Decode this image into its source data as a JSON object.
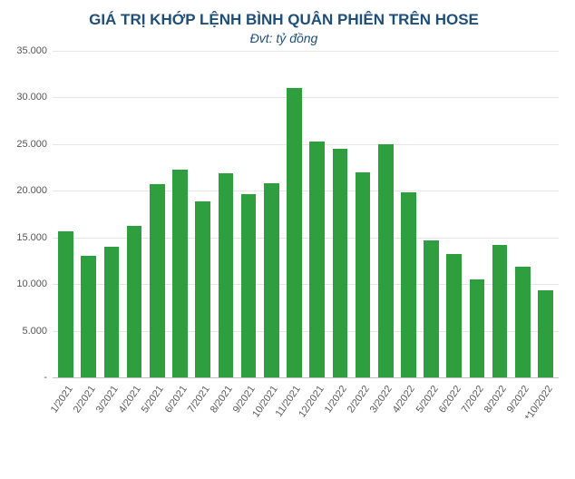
{
  "chart": {
    "type": "bar",
    "title": "GIÁ TRỊ KHỚP LỆNH BÌNH QUÂN PHIÊN TRÊN HOSE",
    "subtitle": "Đvt: tỷ đồng",
    "title_color": "#1f4e79",
    "title_fontsize": 17,
    "subtitle_fontsize": 14,
    "background_color": "#ffffff",
    "grid_color": "#e6e6e6",
    "axis_line_color": "#c0c0c0",
    "bar_color": "#2e9e3f",
    "bar_width_ratio": 0.66,
    "tick_label_color": "#555555",
    "tick_label_fontsize": 11,
    "x_tick_rotation_deg": -55,
    "ylim": [
      0,
      35000
    ],
    "ytick_step": 5000,
    "y_ticks": [
      {
        "value": 0,
        "label": "-"
      },
      {
        "value": 5000,
        "label": "5.000"
      },
      {
        "value": 10000,
        "label": "10.000"
      },
      {
        "value": 15000,
        "label": "15.000"
      },
      {
        "value": 20000,
        "label": "20.000"
      },
      {
        "value": 25000,
        "label": "25.000"
      },
      {
        "value": 30000,
        "label": "30.000"
      },
      {
        "value": 35000,
        "label": "35.000"
      }
    ],
    "categories": [
      "1/2021",
      "2/2021",
      "3/2021",
      "4/2021",
      "5/2021",
      "6/2021",
      "7/2021",
      "8/2021",
      "9/2021",
      "10/2021",
      "11/2021",
      "12/2021",
      "1/2022",
      "2/2022",
      "3/2022",
      "4/2022",
      "5/2022",
      "6/2022",
      "7/2022",
      "8/2022",
      "9/2022",
      "*10/2022"
    ],
    "values": [
      15700,
      13000,
      14000,
      16200,
      20700,
      22300,
      18900,
      21900,
      19600,
      20800,
      31000,
      25300,
      24500,
      22000,
      25000,
      19800,
      14700,
      13200,
      10500,
      14200,
      11900,
      9300
    ]
  }
}
